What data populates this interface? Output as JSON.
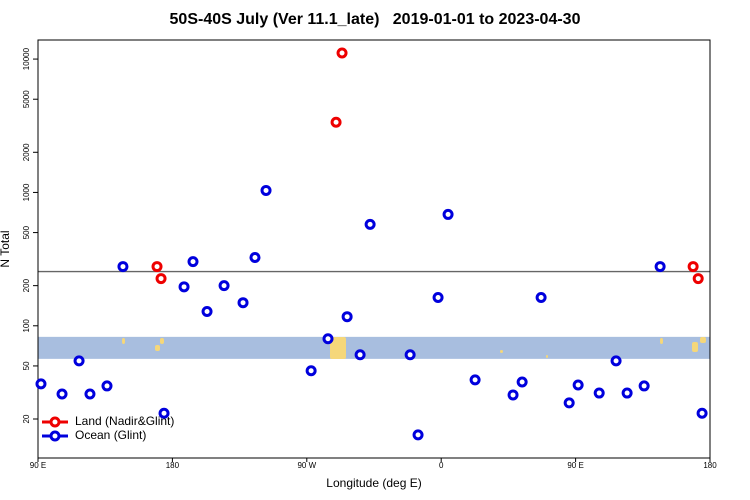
{
  "chart_data": {
    "type": "scatter",
    "title": "50S-40S July (Ver 11.1_late)   2019-01-01 to 2023-04-30",
    "xlabel": "Longitude (deg E)",
    "ylabel": "N Total",
    "xlim": [
      90,
      540
    ],
    "xticks": [
      {
        "value": 90,
        "label": "90 E"
      },
      180,
      {
        "value": 270,
        "label": "90 W"
      },
      {
        "value": 360,
        "label": "0"
      },
      {
        "value": 450,
        "label": "90 E"
      },
      {
        "value": 540,
        "label": "180"
      }
    ],
    "ylim": [
      10.2,
      13900
    ],
    "ylog": true,
    "yticks": [
      20,
      50,
      100,
      200,
      500,
      1000,
      2000,
      5000,
      10000
    ],
    "hline": 255,
    "band": [
      56.5,
      82.6
    ],
    "band_color": "#a8bedf",
    "legend": "lower left",
    "series": [
      {
        "name": "Land (Nadir&Glint)",
        "color": "#ee0000",
        "x": [
          169.7,
          172.4,
          293.6,
          289.6,
          528.7,
          532.1
        ],
        "values": [
          278,
          226,
          11100,
          3360,
          278,
          226
        ]
      },
      {
        "name": "Ocean (Glint)",
        "color": "#0000dd",
        "x": [
          92,
          106.1,
          117.5,
          124.8,
          136.2,
          146.9,
          174.4,
          187.8,
          193.8,
          203.2,
          214.6,
          227.3,
          235.3,
          242.7,
          272.9,
          284.2,
          297,
          305.7,
          312.4,
          339.2,
          344.5,
          357.9,
          364.6,
          382.7,
          408.1,
          414.2,
          426.9,
          445.7,
          451.7,
          465.8,
          477.1,
          484.5,
          495.9,
          506.6,
          534.7
        ],
        "values": [
          36.7,
          30.8,
          54.6,
          30.8,
          35.4,
          278,
          22.1,
          196,
          303,
          128,
          200,
          149,
          325,
          1035,
          46,
          80,
          117,
          60.6,
          576,
          60.6,
          15.2,
          163,
          684,
          39.3,
          30.3,
          37.9,
          163,
          26.4,
          36,
          31.3,
          54.6,
          31.3,
          35.4,
          278,
          22.1
        ]
      }
    ]
  }
}
